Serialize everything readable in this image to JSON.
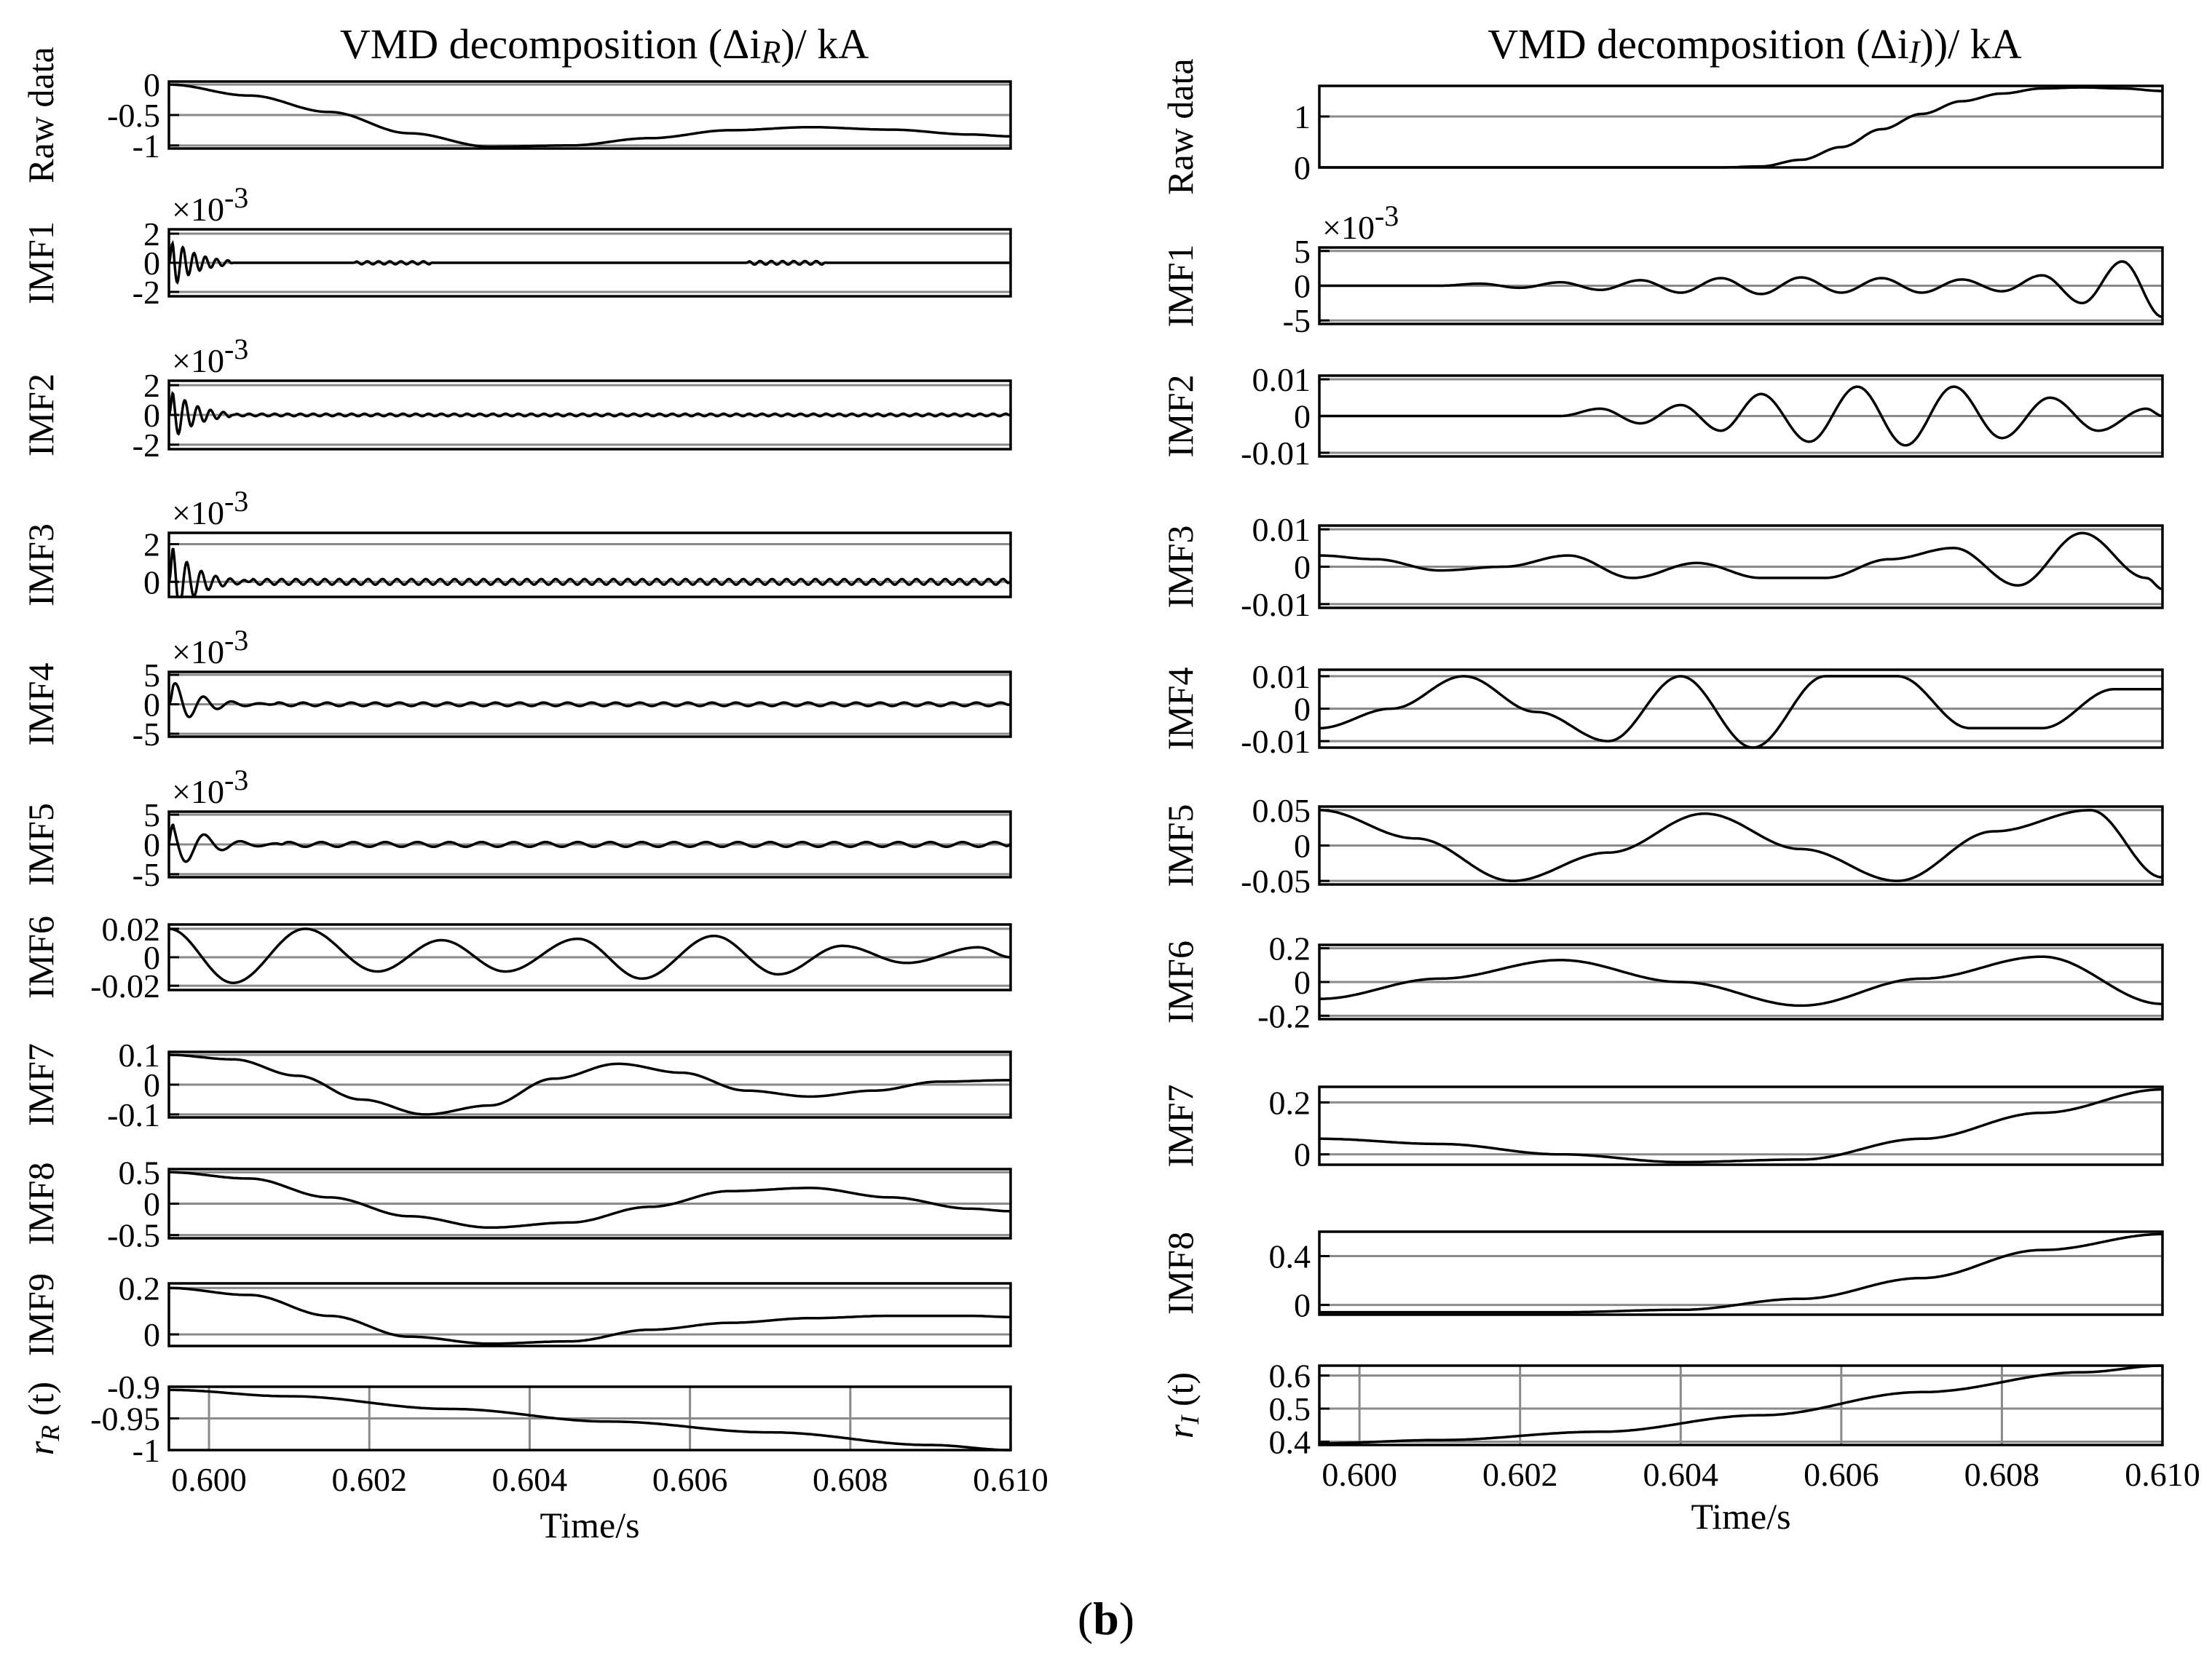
{
  "figure": {
    "caption_open": "(",
    "caption_letter": "b",
    "caption_close": ")"
  },
  "chart_data": [
    {
      "type": "line",
      "title": "VMD decomposition (Δi",
      "title_sub": "R",
      "title_end": ")/ kA",
      "xlabel": "Time/s",
      "xlim": [
        0.5995,
        0.61
      ],
      "xticks": [
        0.6,
        0.602,
        0.604,
        0.606,
        0.608,
        0.61
      ],
      "xtick_labels": [
        "0.600",
        "0.602",
        "0.604",
        "0.606",
        "0.608",
        "0.610"
      ],
      "panels": [
        {
          "name": "raw-data",
          "ylabel": "Raw data",
          "ylim": [
            -1.05,
            0.05
          ],
          "yticks": [
            0,
            -0.5,
            -1
          ],
          "ytick_labels": [
            "0",
            "-0.5",
            "-1"
          ],
          "x": [
            0.5995,
            0.6005,
            0.6015,
            0.6025,
            0.6035,
            0.6045,
            0.6055,
            0.6065,
            0.6075,
            0.6085,
            0.6095,
            0.61
          ],
          "y": [
            0,
            -0.18,
            -0.45,
            -0.8,
            -1.02,
            -1.0,
            -0.88,
            -0.75,
            -0.7,
            -0.74,
            -0.82,
            -0.85
          ]
        },
        {
          "name": "imf1",
          "ylabel": "IMF1",
          "multiplier": "×10",
          "multiplier_exp": "-3",
          "ylim": [
            -2.3,
            2.3
          ],
          "yticks": [
            2,
            0,
            -2
          ],
          "ytick_labels": [
            "2",
            "0",
            "-2"
          ],
          "osc": [
            {
              "x0": 0.5995,
              "x1": 0.6003,
              "amp": 1.9,
              "decay": 0.0003,
              "period": 0.00014,
              "phase": 0
            },
            {
              "x0": 0.6018,
              "x1": 0.6028,
              "amp": 0.1,
              "decay": 1,
              "period": 0.00014,
              "phase": 0
            },
            {
              "x0": 0.6067,
              "x1": 0.6077,
              "amp": 0.12,
              "decay": 1,
              "period": 0.00014,
              "phase": 0
            }
          ]
        },
        {
          "name": "imf2",
          "ylabel": "IMF2",
          "multiplier": "×10",
          "multiplier_exp": "-3",
          "ylim": [
            -2.3,
            2.3
          ],
          "yticks": [
            2,
            0,
            -2
          ],
          "ytick_labels": [
            "2",
            "0",
            "-2"
          ],
          "osc": [
            {
              "x0": 0.5995,
              "x1": 0.6003,
              "amp": 1.9,
              "decay": 0.0003,
              "period": 0.00016,
              "phase": 0
            },
            {
              "x0": 0.6003,
              "x1": 0.61,
              "amp": 0.08,
              "decay": 1,
              "period": 0.00016,
              "phase": 0
            }
          ]
        },
        {
          "name": "imf3",
          "ylabel": "IMF3",
          "multiplier": "×10",
          "multiplier_exp": "-3",
          "ylim": [
            -0.8,
            2.6
          ],
          "yticks": [
            2,
            0
          ],
          "ytick_labels": [
            "2",
            "0"
          ],
          "osc": [
            {
              "x0": 0.5995,
              "x1": 0.6005,
              "amp": 2.2,
              "decay": 0.0003,
              "period": 0.00018,
              "phase": 0
            },
            {
              "x0": 0.6005,
              "x1": 0.61,
              "amp": 0.15,
              "decay": 1,
              "period": 0.00018,
              "phase": 0
            }
          ]
        },
        {
          "name": "imf4",
          "ylabel": "IMF4",
          "multiplier": "×10",
          "multiplier_exp": "-3",
          "ylim": [
            -5.5,
            5.5
          ],
          "yticks": [
            5,
            0,
            -5
          ],
          "ytick_labels": [
            "5",
            "0",
            "-5"
          ],
          "osc": [
            {
              "x0": 0.5995,
              "x1": 0.6008,
              "amp": 4.5,
              "decay": 0.00035,
              "period": 0.00035,
              "phase": 0
            },
            {
              "x0": 0.6008,
              "x1": 0.61,
              "amp": 0.3,
              "decay": 1,
              "period": 0.0003,
              "phase": 0
            }
          ]
        },
        {
          "name": "imf5",
          "ylabel": "IMF5",
          "multiplier": "×10",
          "multiplier_exp": "-3",
          "ylim": [
            -5.5,
            5.5
          ],
          "yticks": [
            5,
            0,
            -5
          ],
          "ytick_labels": [
            "5",
            "0",
            "-5"
          ],
          "osc": [
            {
              "x0": 0.5995,
              "x1": 0.6009,
              "amp": 5,
              "decay": 0.0004,
              "period": 0.00045,
              "phase": 1.57
            },
            {
              "x0": 0.6009,
              "x1": 0.61,
              "amp": 0.4,
              "decay": 1,
              "period": 0.0004,
              "phase": 0
            }
          ]
        },
        {
          "name": "imf6",
          "ylabel": "IMF6",
          "ylim": [
            -0.023,
            0.023
          ],
          "yticks": [
            0.02,
            0,
            -0.02
          ],
          "ytick_labels": [
            "0.02",
            "0",
            "-0.02"
          ],
          "x": [
            0.5995,
            0.6003,
            0.6012,
            0.6021,
            0.6029,
            0.6037,
            0.6046,
            0.6054,
            0.6063,
            0.6071,
            0.6079,
            0.6087,
            0.6096,
            0.61
          ],
          "y": [
            0.02,
            -0.018,
            0.02,
            -0.01,
            0.012,
            -0.01,
            0.013,
            -0.015,
            0.015,
            -0.012,
            0.008,
            -0.004,
            0.007,
            0.0
          ]
        },
        {
          "name": "imf7",
          "ylabel": "IMF7",
          "ylim": [
            -0.11,
            0.11
          ],
          "yticks": [
            0.1,
            0,
            -0.1
          ],
          "ytick_labels": [
            "0.1",
            "0",
            "-0.1"
          ],
          "x": [
            0.5995,
            0.6003,
            0.6011,
            0.6019,
            0.6027,
            0.6035,
            0.6043,
            0.6051,
            0.6059,
            0.6067,
            0.6075,
            0.6083,
            0.6091,
            0.61
          ],
          "y": [
            0.1,
            0.085,
            0.03,
            -0.05,
            -0.1,
            -0.07,
            0.02,
            0.07,
            0.04,
            -0.02,
            -0.04,
            -0.02,
            0.01,
            0.015
          ]
        },
        {
          "name": "imf8",
          "ylabel": "IMF8",
          "ylim": [
            -0.55,
            0.55
          ],
          "yticks": [
            0.5,
            0,
            -0.5
          ],
          "ytick_labels": [
            "0.5",
            "0",
            "-0.5"
          ],
          "x": [
            0.5995,
            0.6005,
            0.6015,
            0.6025,
            0.6035,
            0.6045,
            0.6055,
            0.6065,
            0.6075,
            0.6085,
            0.6095,
            0.61
          ],
          "y": [
            0.5,
            0.4,
            0.1,
            -0.2,
            -0.38,
            -0.3,
            -0.05,
            0.2,
            0.25,
            0.1,
            -0.08,
            -0.12
          ]
        },
        {
          "name": "imf9",
          "ylabel": "IMF9",
          "ylim": [
            -0.05,
            0.22
          ],
          "yticks": [
            0.2,
            0
          ],
          "ytick_labels": [
            "0.2",
            "0"
          ],
          "x": [
            0.5995,
            0.6005,
            0.6015,
            0.6025,
            0.6035,
            0.6045,
            0.6055,
            0.6065,
            0.6075,
            0.6085,
            0.6095,
            0.61
          ],
          "y": [
            0.2,
            0.17,
            0.08,
            -0.01,
            -0.04,
            -0.03,
            0.02,
            0.05,
            0.07,
            0.08,
            0.08,
            0.075
          ]
        },
        {
          "name": "residual",
          "ylabel": "r",
          "ylabel_sub": "R",
          "ylabel_arg": " (t)",
          "residual": true,
          "ylim": [
            -1.0,
            -0.9
          ],
          "yticks": [
            -0.9,
            -0.95,
            -1
          ],
          "ytick_labels": [
            "-0.9",
            "-0.95",
            "-1"
          ],
          "x": [
            0.5995,
            0.601,
            0.603,
            0.605,
            0.607,
            0.609,
            0.61
          ],
          "y": [
            -0.905,
            -0.915,
            -0.935,
            -0.955,
            -0.972,
            -0.992,
            -1.0
          ]
        }
      ]
    },
    {
      "type": "line",
      "title": "VMD decomposition (Δi",
      "title_sub": "I",
      "title_end": "))/ kA",
      "xlabel": "Time/s",
      "xlim": [
        0.5995,
        0.61
      ],
      "xticks": [
        0.6,
        0.602,
        0.604,
        0.606,
        0.608,
        0.61
      ],
      "xtick_labels": [
        "0.600",
        "0.602",
        "0.604",
        "0.606",
        "0.608",
        "0.610"
      ],
      "panels": [
        {
          "name": "raw-data",
          "ylabel": "Raw data",
          "ylim": [
            0,
            1.6
          ],
          "yticks": [
            1,
            0
          ],
          "ytick_labels": [
            "1",
            "0"
          ],
          "x": [
            0.5995,
            0.602,
            0.604,
            0.6045,
            0.605,
            0.6055,
            0.606,
            0.6065,
            0.607,
            0.6075,
            0.608,
            0.6085,
            0.609,
            0.6095,
            0.61
          ],
          "y": [
            0,
            0,
            0,
            0,
            0.02,
            0.15,
            0.4,
            0.75,
            1.05,
            1.3,
            1.45,
            1.55,
            1.57,
            1.55,
            1.5
          ]
        },
        {
          "name": "imf1",
          "ylabel": "IMF1",
          "multiplier": "×10",
          "multiplier_exp": "-3",
          "ylim": [
            -5.5,
            5.5
          ],
          "yticks": [
            5,
            0,
            -5
          ],
          "ytick_labels": [
            "5",
            "0",
            "-5"
          ],
          "x": [
            0.5995,
            0.601,
            0.6015,
            0.602,
            0.6025,
            0.603,
            0.6035,
            0.604,
            0.6045,
            0.605,
            0.6055,
            0.606,
            0.6065,
            0.607,
            0.6075,
            0.608,
            0.6085,
            0.609,
            0.6095,
            0.61
          ],
          "y": [
            0,
            0,
            0.3,
            -0.3,
            0.5,
            -0.6,
            0.8,
            -1.0,
            1.1,
            -1.2,
            1.2,
            -1.0,
            1.1,
            -1.0,
            0.9,
            -0.8,
            1.5,
            -2.5,
            3.5,
            -4.5
          ]
        },
        {
          "name": "imf2",
          "ylabel": "IMF2",
          "ylim": [
            -0.011,
            0.011
          ],
          "yticks": [
            0.01,
            0,
            -0.01
          ],
          "ytick_labels": [
            "0.01",
            "0",
            "-0.01"
          ],
          "x": [
            0.5995,
            0.602,
            0.6025,
            0.603,
            0.6035,
            0.604,
            0.6045,
            0.605,
            0.6056,
            0.6062,
            0.6068,
            0.6074,
            0.608,
            0.6086,
            0.6092,
            0.6098,
            0.61
          ],
          "y": [
            0,
            0,
            0,
            0.002,
            -0.002,
            0.003,
            -0.004,
            0.006,
            -0.007,
            0.008,
            -0.008,
            0.008,
            -0.006,
            0.005,
            -0.004,
            0.002,
            0.0
          ]
        },
        {
          "name": "imf3",
          "ylabel": "IMF3",
          "ylim": [
            -0.011,
            0.011
          ],
          "yticks": [
            0.01,
            0,
            -0.01
          ],
          "ytick_labels": [
            "0.01",
            "0",
            "-0.01"
          ],
          "x": [
            0.5995,
            0.6002,
            0.601,
            0.6018,
            0.6026,
            0.6034,
            0.6042,
            0.605,
            0.6058,
            0.6066,
            0.6074,
            0.6082,
            0.609,
            0.6098,
            0.61
          ],
          "y": [
            0.003,
            0.002,
            -0.001,
            0.0,
            0.003,
            -0.003,
            0.001,
            -0.003,
            -0.003,
            0.002,
            0.005,
            -0.005,
            0.009,
            -0.003,
            -0.006
          ]
        },
        {
          "name": "imf4",
          "ylabel": "IMF4",
          "ylim": [
            -0.012,
            0.012
          ],
          "yticks": [
            0.01,
            0,
            -0.01
          ],
          "ytick_labels": [
            "0.01",
            "0",
            "-0.01"
          ],
          "x": [
            0.5995,
            0.6004,
            0.6013,
            0.6022,
            0.6031,
            0.604,
            0.6049,
            0.6058,
            0.6067,
            0.6076,
            0.6085,
            0.6094,
            0.61
          ],
          "y": [
            -0.006,
            0.0,
            0.01,
            -0.001,
            -0.01,
            0.01,
            -0.012,
            0.01,
            0.01,
            -0.006,
            -0.006,
            0.006,
            0.006
          ]
        },
        {
          "name": "imf5",
          "ylabel": "IMF5",
          "ylim": [
            -0.055,
            0.055
          ],
          "yticks": [
            0.05,
            0,
            -0.05
          ],
          "ytick_labels": [
            "0.05",
            "0",
            "-0.05"
          ],
          "x": [
            0.5995,
            0.6007,
            0.6019,
            0.6031,
            0.6043,
            0.6055,
            0.6067,
            0.6079,
            0.6091,
            0.61
          ],
          "y": [
            0.05,
            0.01,
            -0.05,
            -0.01,
            0.045,
            -0.005,
            -0.05,
            0.02,
            0.05,
            -0.045
          ]
        },
        {
          "name": "imf6",
          "ylabel": "IMF6",
          "ylim": [
            -0.22,
            0.22
          ],
          "yticks": [
            0.2,
            0,
            -0.2
          ],
          "ytick_labels": [
            "0.2",
            "0",
            "-0.2"
          ],
          "x": [
            0.5995,
            0.601,
            0.6025,
            0.604,
            0.6055,
            0.607,
            0.6085,
            0.61
          ],
          "y": [
            -0.1,
            0.02,
            0.13,
            0.0,
            -0.14,
            0.02,
            0.15,
            -0.13
          ]
        },
        {
          "name": "imf7",
          "ylabel": "IMF7",
          "ylim": [
            -0.04,
            0.26
          ],
          "yticks": [
            0.2,
            0
          ],
          "ytick_labels": [
            "0.2",
            "0"
          ],
          "x": [
            0.5995,
            0.601,
            0.6025,
            0.604,
            0.6055,
            0.607,
            0.6085,
            0.61
          ],
          "y": [
            0.06,
            0.04,
            0.0,
            -0.03,
            -0.02,
            0.06,
            0.16,
            0.25
          ]
        },
        {
          "name": "imf8",
          "ylabel": "IMF8",
          "ylim": [
            -0.08,
            0.6
          ],
          "yticks": [
            0.4,
            0
          ],
          "ytick_labels": [
            "0.4",
            "0"
          ],
          "x": [
            0.5995,
            0.601,
            0.6025,
            0.604,
            0.6055,
            0.607,
            0.6085,
            0.61
          ],
          "y": [
            -0.06,
            -0.06,
            -0.06,
            -0.04,
            0.05,
            0.22,
            0.45,
            0.58
          ]
        },
        {
          "name": "residual",
          "ylabel": "r",
          "ylabel_sub": "I",
          "ylabel_arg": " (t)",
          "residual": true,
          "ylim": [
            0.39,
            0.63
          ],
          "yticks": [
            0.6,
            0.5,
            0.4
          ],
          "ytick_labels": [
            "0.6",
            "0.5",
            "0.4"
          ],
          "x": [
            0.5995,
            0.601,
            0.603,
            0.605,
            0.607,
            0.609,
            0.61
          ],
          "y": [
            0.395,
            0.405,
            0.43,
            0.48,
            0.55,
            0.61,
            0.63
          ]
        }
      ]
    }
  ]
}
